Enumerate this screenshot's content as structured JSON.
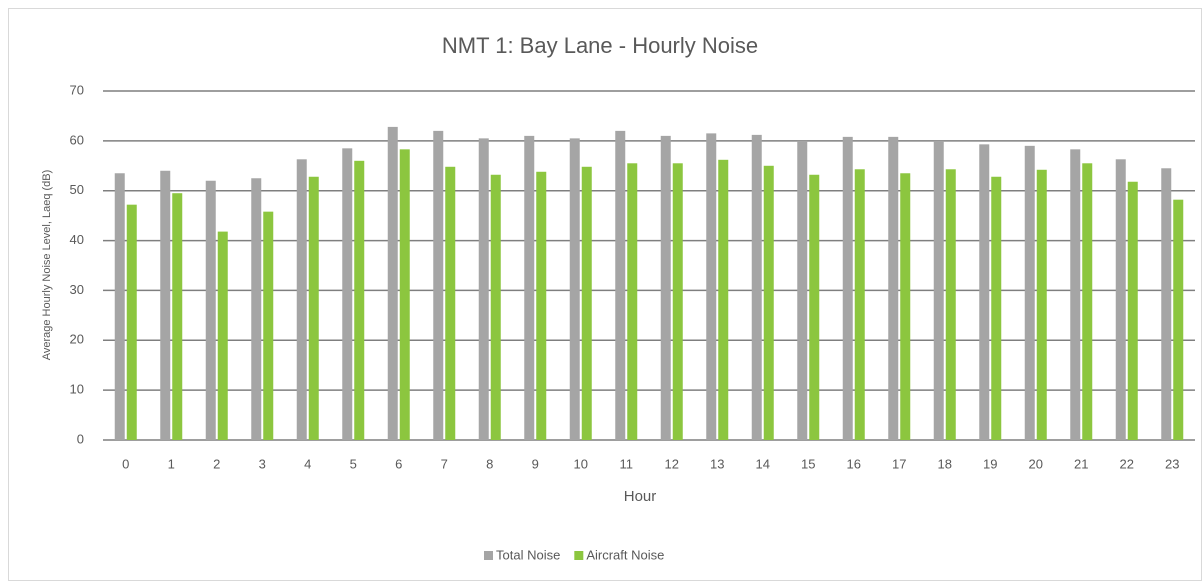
{
  "chart_data": {
    "type": "bar",
    "title": "NMT 1: Bay Lane - Hourly Noise",
    "x_label": "Hour",
    "y_label": "Average Hourly Noise Level, Laeq (dB)",
    "categories": [
      "0",
      "1",
      "2",
      "3",
      "4",
      "5",
      "6",
      "7",
      "8",
      "9",
      "10",
      "11",
      "12",
      "13",
      "14",
      "15",
      "16",
      "17",
      "18",
      "19",
      "20",
      "21",
      "22",
      "23"
    ],
    "series": [
      {
        "name": "Total Noise",
        "color": "#a5a5a5",
        "values": [
          53.5,
          54,
          52,
          52.5,
          56.3,
          58.5,
          62.8,
          62,
          60.5,
          61,
          60.5,
          62,
          61,
          61.5,
          61.2,
          60,
          60.8,
          60.8,
          60,
          59.3,
          59,
          58.3,
          56.3,
          54.5
        ]
      },
      {
        "name": "Aircraft Noise",
        "color": "#8cc63f",
        "values": [
          47.2,
          49.5,
          41.8,
          45.8,
          52.8,
          56,
          58.3,
          54.8,
          53.2,
          53.8,
          54.8,
          55.5,
          55.5,
          56.2,
          55,
          53.2,
          54.3,
          53.5,
          54.3,
          52.8,
          54.2,
          55.5,
          51.8,
          48.2
        ]
      }
    ],
    "ylim": [
      0,
      70
    ],
    "yticks": [
      0,
      10,
      20,
      30,
      40,
      50,
      60,
      70
    ],
    "grid": true,
    "legend": "bottom"
  }
}
